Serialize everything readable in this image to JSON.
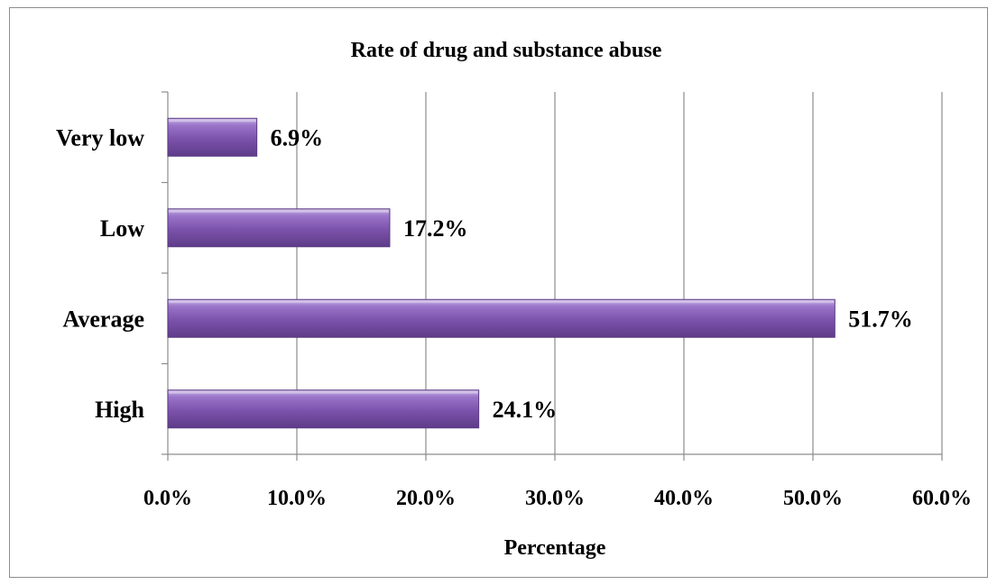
{
  "chart_data": {
    "type": "bar",
    "orientation": "horizontal",
    "title": "Rate of drug and substance abuse",
    "xlabel": "Percentage",
    "ylabel": "",
    "categories": [
      "Very low",
      "Low",
      "Average",
      "High"
    ],
    "values": [
      6.9,
      17.2,
      51.7,
      24.1
    ],
    "value_labels": [
      "6.9%",
      "17.2%",
      "51.7%",
      "24.1%"
    ],
    "xlim": [
      0,
      60
    ],
    "xticks": [
      0,
      10,
      20,
      30,
      40,
      50,
      60
    ],
    "xtick_labels": [
      "0.0%",
      "10.0%",
      "20.0%",
      "30.0%",
      "40.0%",
      "50.0%",
      "60.0%"
    ],
    "grid": "vertical",
    "legend": "none",
    "bar_color": "#7b52ab",
    "bar_edge_color": "#5a3b82"
  }
}
